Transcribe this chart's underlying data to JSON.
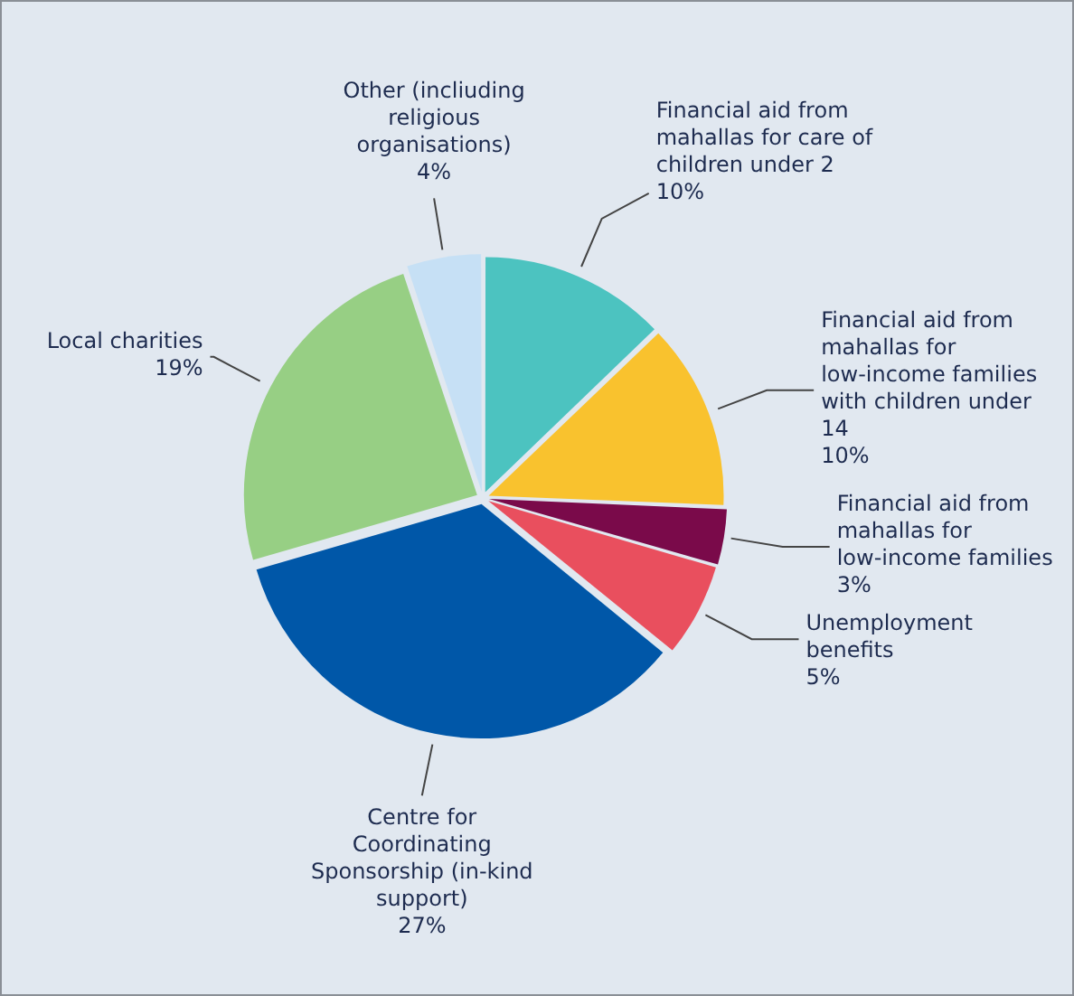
{
  "chart_data": {
    "type": "pie",
    "legend": false,
    "categories": [
      "Financial aid from mahallas for care of children under 2",
      "Financial aid from mahallas for low-income families with children under 14",
      "Financial aid from mahallas for low-income families",
      "Unemployment benefits",
      "Centre for Coordinating Sponsorship (in-kind support)",
      "Local charities",
      "Other (incliuding religious organisations)"
    ],
    "values": [
      10,
      10,
      3,
      5,
      27,
      19,
      4
    ],
    "value_labels": [
      "10%",
      "10%",
      "3%",
      "5%",
      "27%",
      "19%",
      "4%"
    ],
    "colors": [
      "#4cc3c0",
      "#f9c22e",
      "#7a0a4a",
      "#e94f5e",
      "#0057a8",
      "#97cf84",
      "#c6e0f5"
    ]
  }
}
